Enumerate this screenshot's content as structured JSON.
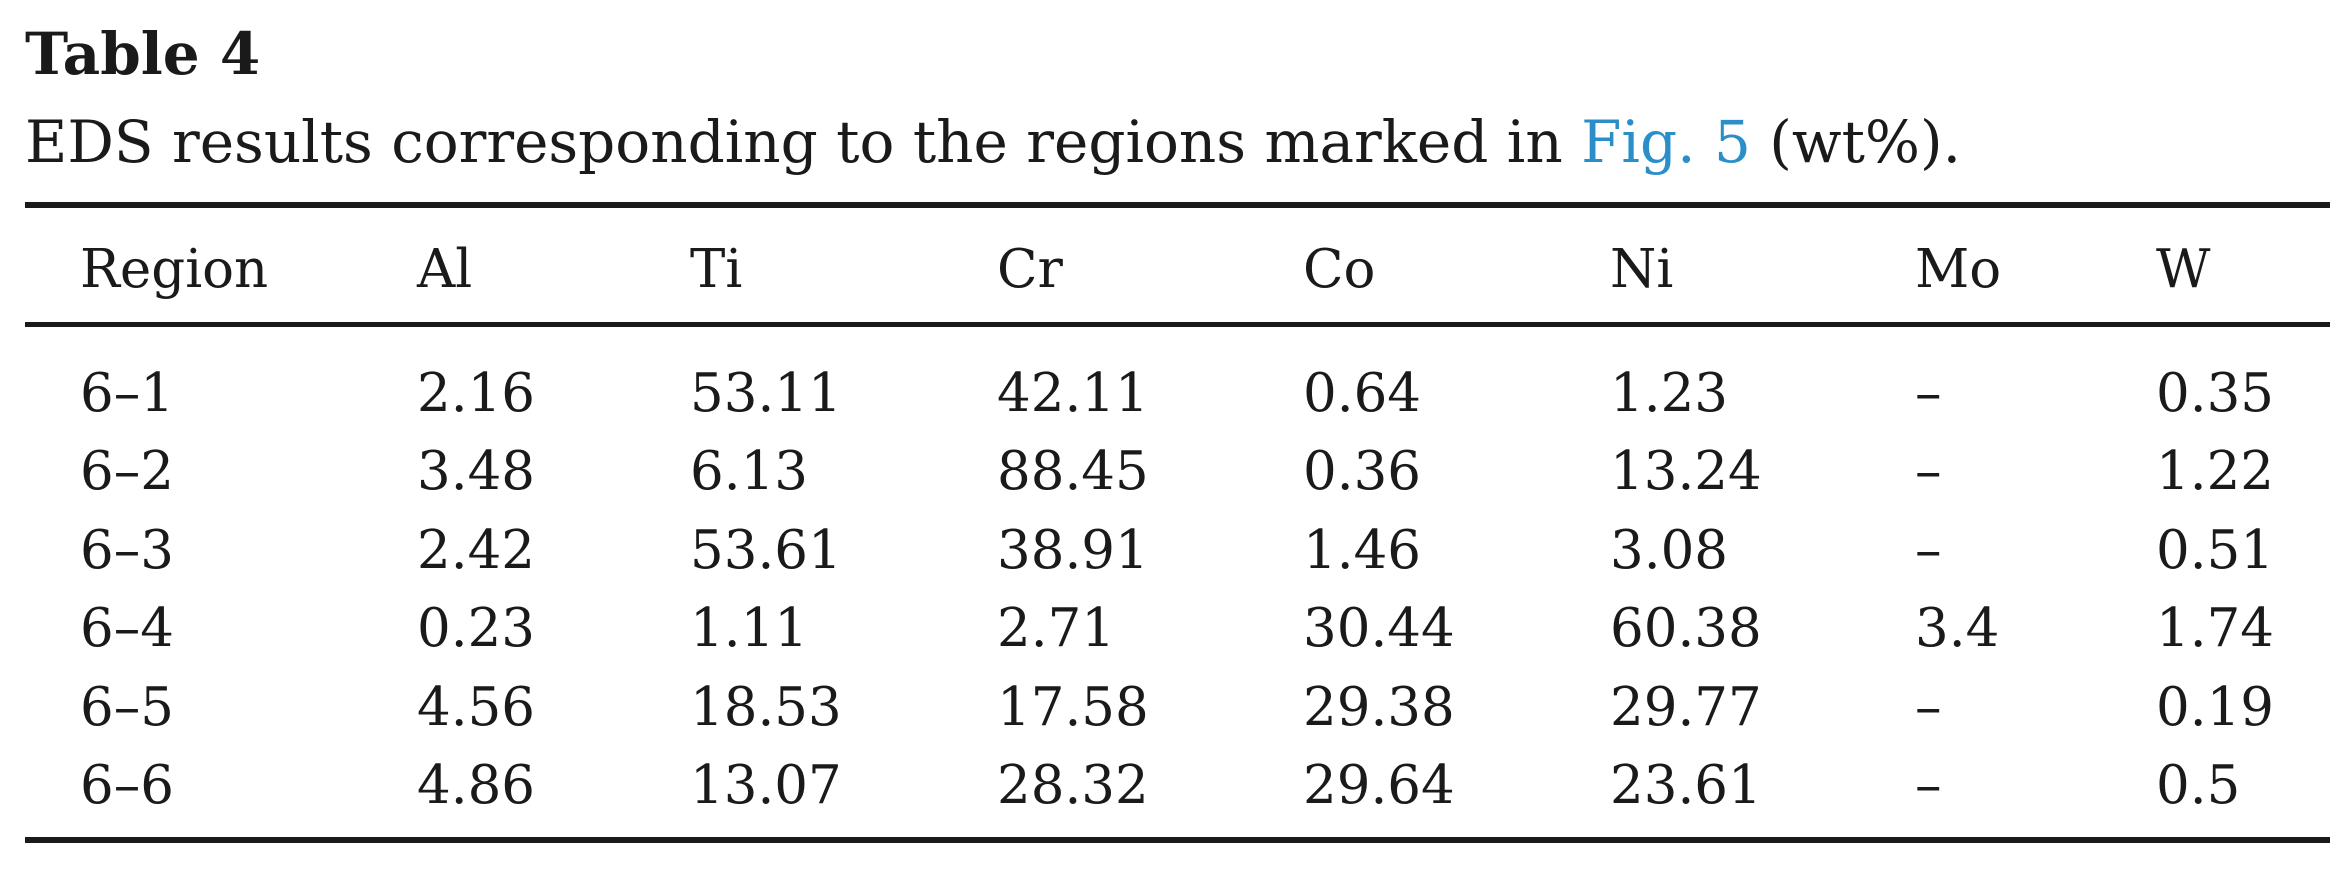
{
  "caption": {
    "label": "Table 4",
    "text_before": "EDS results corresponding to the regions marked in ",
    "fig_link": "Fig. 5",
    "text_after": " (wt%)."
  },
  "table": {
    "headers": [
      "Region",
      "Al",
      "Ti",
      "Cr",
      "Co",
      "Ni",
      "Mo",
      "W"
    ],
    "rows": [
      [
        "6–1",
        "2.16",
        "53.11",
        "42.11",
        "0.64",
        "1.23",
        "–",
        "0.35"
      ],
      [
        "6–2",
        "3.48",
        "6.13",
        "88.45",
        "0.36",
        "13.24",
        "–",
        "1.22"
      ],
      [
        "6–3",
        "2.42",
        "53.61",
        "38.91",
        "1.46",
        "3.08",
        "–",
        "0.51"
      ],
      [
        "6–4",
        "0.23",
        "1.11",
        "2.71",
        "30.44",
        "60.38",
        "3.4",
        "1.74"
      ],
      [
        "6–5",
        "4.56",
        "18.53",
        "17.58",
        "29.38",
        "29.77",
        "–",
        "0.19"
      ],
      [
        "6–6",
        "4.86",
        "13.07",
        "28.32",
        "29.64",
        "23.61",
        "–",
        "0.5"
      ]
    ]
  },
  "colors": {
    "text": "#1a1a1a",
    "link": "#2a8fc9",
    "rule": "#1a1a1a"
  }
}
